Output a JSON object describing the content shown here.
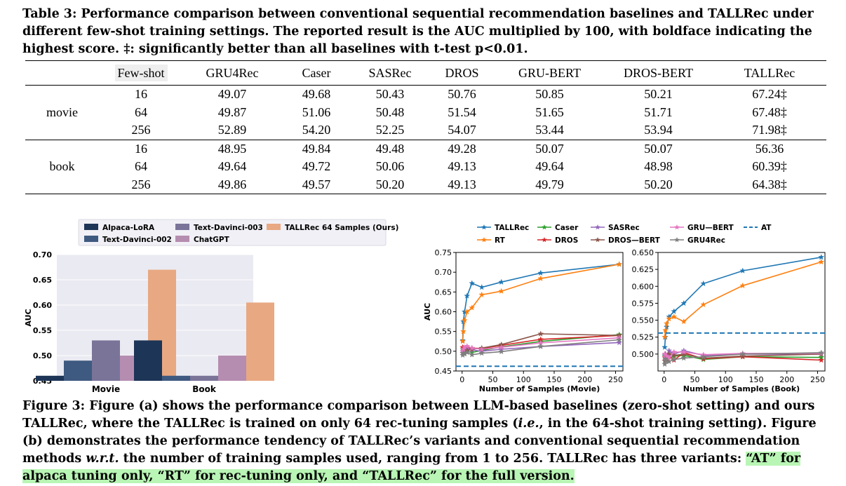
{
  "table": {
    "caption": "Table 3: Performance comparison between conventional sequential recommendation baselines and TALLRec under different few-shot training settings. The reported result is the AUC multiplied by 100, with boldface indicating the highest score. ‡: significantly better than all baselines with t-test p<0.01.",
    "headers": [
      "",
      "Few-shot",
      "GRU4Rec",
      "Caser",
      "SASRec",
      "DROS",
      "GRU-BERT",
      "DROS-BERT",
      "TALLRec"
    ],
    "groups": [
      {
        "name": "movie",
        "rows": [
          [
            "16",
            "49.07",
            "49.68",
            "50.43",
            "50.76",
            "50.85",
            "50.21",
            "67.24‡"
          ],
          [
            "64",
            "49.87",
            "51.06",
            "50.48",
            "51.54",
            "51.65",
            "51.71",
            "67.48‡"
          ],
          [
            "256",
            "52.89",
            "54.20",
            "52.25",
            "54.07",
            "53.44",
            "53.94",
            "71.98‡"
          ]
        ]
      },
      {
        "name": "book",
        "rows": [
          [
            "16",
            "48.95",
            "49.84",
            "49.48",
            "49.28",
            "50.07",
            "50.07",
            "56.36"
          ],
          [
            "64",
            "49.64",
            "49.72",
            "50.06",
            "49.13",
            "49.64",
            "48.98",
            "60.39‡"
          ],
          [
            "256",
            "49.86",
            "49.57",
            "50.20",
            "49.13",
            "49.79",
            "50.20",
            "64.38‡"
          ]
        ]
      }
    ]
  },
  "figure": {
    "caption_parts": [
      "Figure 3: Figure (a) shows the performance comparison between LLM-based baselines (zero-shot setting) and ours TALLRec, where the TALLRec is trained on only 64 rec-tuning samples (",
      "i.e.",
      ", in the 64-shot training setting). Figure (b) demonstrates the performance tendency of TALLRec’s variants and conventional sequential recommendation methods ",
      "w.r.t.",
      " the number of training samples used, ranging from 1 to 256. TALLRec has three variants: ",
      "“AT” for alpaca tuning only, “RT” for rec-tuning only, and “TALLRec” for the full version."
    ]
  },
  "chart_data": [
    {
      "type": "bar",
      "categories": [
        "Movie",
        "Book"
      ],
      "ylabel": "AUC",
      "ylim": [
        0.45,
        0.7
      ],
      "yticks": [
        "0.45",
        "0.50",
        "0.55",
        "0.60",
        "0.65",
        "0.70"
      ],
      "legend_position": "top",
      "series": [
        {
          "name": "Alpaca-LoRA",
          "color": "#1d3557",
          "values": [
            0.46,
            0.53
          ]
        },
        {
          "name": "Text-Davinci-002",
          "color": "#3f5a80",
          "values": [
            0.49,
            0.46
          ]
        },
        {
          "name": "Text-Davinci-003",
          "color": "#7a7499",
          "values": [
            0.53,
            0.46
          ]
        },
        {
          "name": "ChatGPT",
          "color": "#b58db0",
          "values": [
            0.5,
            0.5
          ]
        },
        {
          "name": "TALLRec 64 Samples (Ours)",
          "color": "#e8a882",
          "values": [
            0.67,
            0.605
          ]
        }
      ]
    },
    {
      "type": "line",
      "xlabel": "Number of Samples (Movie)",
      "ylabel": "AUC",
      "xlim": [
        -10,
        262
      ],
      "ylim": [
        0.45,
        0.75
      ],
      "xticks": [
        "0",
        "50",
        "100",
        "150",
        "200",
        "250"
      ],
      "yticks": [
        "0.45",
        "0.50",
        "0.55",
        "0.60",
        "0.65",
        "0.70",
        "0.75"
      ],
      "x": [
        1,
        2,
        4,
        8,
        16,
        32,
        64,
        128,
        256
      ],
      "series": [
        {
          "name": "TALLRec",
          "color": "#1f77b4",
          "values": [
            0.527,
            0.575,
            0.6,
            0.64,
            0.672,
            0.662,
            0.675,
            0.698,
            0.72
          ]
        },
        {
          "name": "RT",
          "color": "#ff7f0e",
          "values": [
            0.525,
            0.55,
            0.578,
            0.6,
            0.61,
            0.643,
            0.652,
            0.684,
            0.72
          ]
        },
        {
          "name": "Caser",
          "color": "#2ca02c",
          "values": [
            0.505,
            0.5,
            0.495,
            0.5,
            0.497,
            0.502,
            0.511,
            0.525,
            0.542
          ]
        },
        {
          "name": "DROS",
          "color": "#d62728",
          "values": [
            0.51,
            0.508,
            0.505,
            0.51,
            0.508,
            0.507,
            0.515,
            0.53,
            0.54
          ]
        },
        {
          "name": "SASRec",
          "color": "#9467bd",
          "values": [
            0.5,
            0.497,
            0.5,
            0.505,
            0.503,
            0.5,
            0.505,
            0.512,
            0.522
          ]
        },
        {
          "name": "DROS-BERT",
          "color": "#8c564b",
          "values": [
            0.495,
            0.5,
            0.498,
            0.502,
            0.505,
            0.508,
            0.517,
            0.544,
            0.54
          ]
        },
        {
          "name": "GRU-BERT",
          "color": "#e377c2",
          "values": [
            0.5,
            0.505,
            0.51,
            0.513,
            0.508,
            0.505,
            0.51,
            0.521,
            0.534
          ]
        },
        {
          "name": "GRU4Rec",
          "color": "#7f7f7f",
          "values": [
            0.49,
            0.495,
            0.493,
            0.497,
            0.491,
            0.495,
            0.499,
            0.512,
            0.529
          ]
        },
        {
          "name": "AT",
          "color": "#1f77b4",
          "dashed": true,
          "values": [
            0.462,
            0.462,
            0.462,
            0.462,
            0.462,
            0.462,
            0.462,
            0.462,
            0.462
          ]
        }
      ]
    },
    {
      "type": "line",
      "xlabel": "Number of Samples (Book)",
      "ylabel": "",
      "xlim": [
        -10,
        262
      ],
      "ylim": [
        0.475,
        0.65
      ],
      "xticks": [
        "0",
        "50",
        "100",
        "150",
        "200",
        "250"
      ],
      "yticks": [
        "0.500",
        "0.525",
        "0.550",
        "0.575",
        "0.600",
        "0.625",
        "0.650"
      ],
      "x": [
        1,
        2,
        4,
        8,
        16,
        32,
        64,
        128,
        256
      ],
      "series": [
        {
          "name": "TALLRec",
          "color": "#1f77b4",
          "values": [
            0.51,
            0.525,
            0.54,
            0.555,
            0.563,
            0.575,
            0.604,
            0.623,
            0.643
          ]
        },
        {
          "name": "RT",
          "color": "#ff7f0e",
          "values": [
            0.525,
            0.535,
            0.545,
            0.552,
            0.555,
            0.548,
            0.573,
            0.601,
            0.636
          ]
        },
        {
          "name": "Caser",
          "color": "#2ca02c",
          "values": [
            0.497,
            0.499,
            0.496,
            0.495,
            0.497,
            0.498,
            0.492,
            0.496,
            0.495
          ]
        },
        {
          "name": "DROS",
          "color": "#d62728",
          "values": [
            0.495,
            0.493,
            0.49,
            0.497,
            0.491,
            0.502,
            0.493,
            0.496,
            0.491
          ]
        },
        {
          "name": "SASRec",
          "color": "#9467bd",
          "values": [
            0.498,
            0.5,
            0.497,
            0.505,
            0.5,
            0.505,
            0.498,
            0.5,
            0.5
          ]
        },
        {
          "name": "DROS-BERT",
          "color": "#8c564b",
          "values": [
            0.49,
            0.5,
            0.495,
            0.5,
            0.498,
            0.5,
            0.494,
            0.497,
            0.5
          ]
        },
        {
          "name": "GRU-BERT",
          "color": "#e377c2",
          "values": [
            0.5,
            0.495,
            0.497,
            0.495,
            0.503,
            0.503,
            0.499,
            0.501,
            0.501
          ]
        },
        {
          "name": "GRU4Rec",
          "color": "#7f7f7f",
          "values": [
            0.485,
            0.493,
            0.489,
            0.489,
            0.492,
            0.494,
            0.496,
            0.5,
            0.502
          ]
        },
        {
          "name": "AT",
          "color": "#1f77b4",
          "dashed": true,
          "values": [
            0.531,
            0.531,
            0.531,
            0.531,
            0.531,
            0.531,
            0.531,
            0.531,
            0.531
          ]
        }
      ]
    }
  ]
}
